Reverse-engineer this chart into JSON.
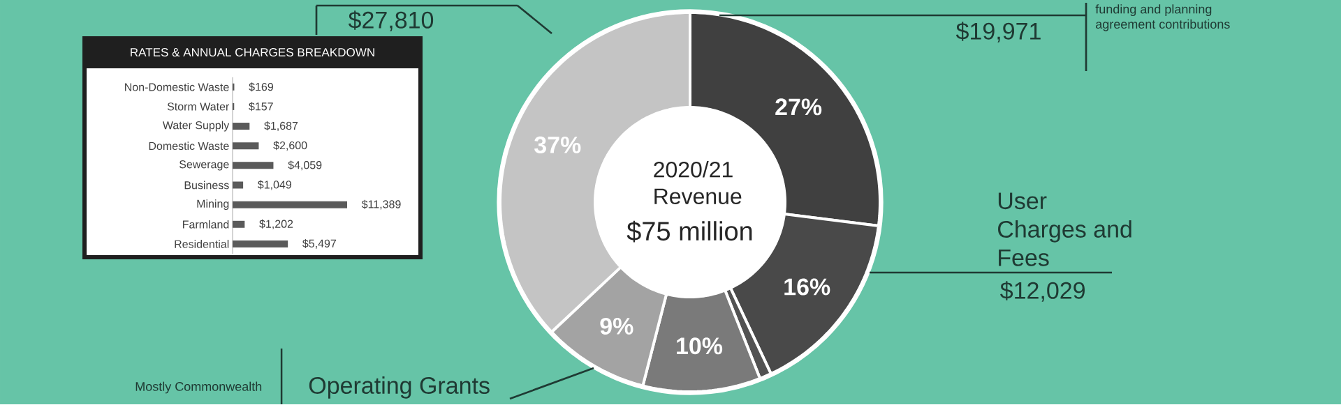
{
  "chart_data": [
    {
      "type": "donut",
      "title": "2020/21 Revenue",
      "subtitle": "$75 million",
      "categories": [
        "funding and planning agreement contributions",
        "User Charges and Fees",
        null,
        null,
        "Operating Grants",
        null
      ],
      "values": [
        27,
        16,
        1,
        10,
        9,
        37
      ],
      "value_labels": [
        "27%",
        "16%",
        null,
        "10%",
        "9%",
        "37%"
      ],
      "colors": [
        "#404040",
        "#494949",
        "#525252",
        "#7a7a7a",
        "#a3a3a3",
        "#c4c4c4"
      ],
      "annotations": [
        "$27,810",
        "$19,971",
        "$12,029",
        "Mostly Commonwealth"
      ]
    },
    {
      "type": "bar",
      "orientation": "horizontal",
      "title": "RATES & ANNUAL CHARGES BREAKDOWN",
      "categories": [
        "Non-Domestic Waste",
        "Storm Water",
        "Water Supply",
        "Domestic Waste",
        "Sewerage",
        "Business",
        "Mining",
        "Farmland",
        "Residential"
      ],
      "values": [
        169,
        157,
        1687,
        2600,
        4059,
        1049,
        11389,
        1202,
        5497
      ],
      "value_labels": [
        "$169",
        "$157",
        "$1,687",
        "$2,600",
        "$4,059",
        "$1,049",
        "$11,389",
        "$1,202",
        "$5,497"
      ],
      "color": "#5a5a5a"
    }
  ]
}
